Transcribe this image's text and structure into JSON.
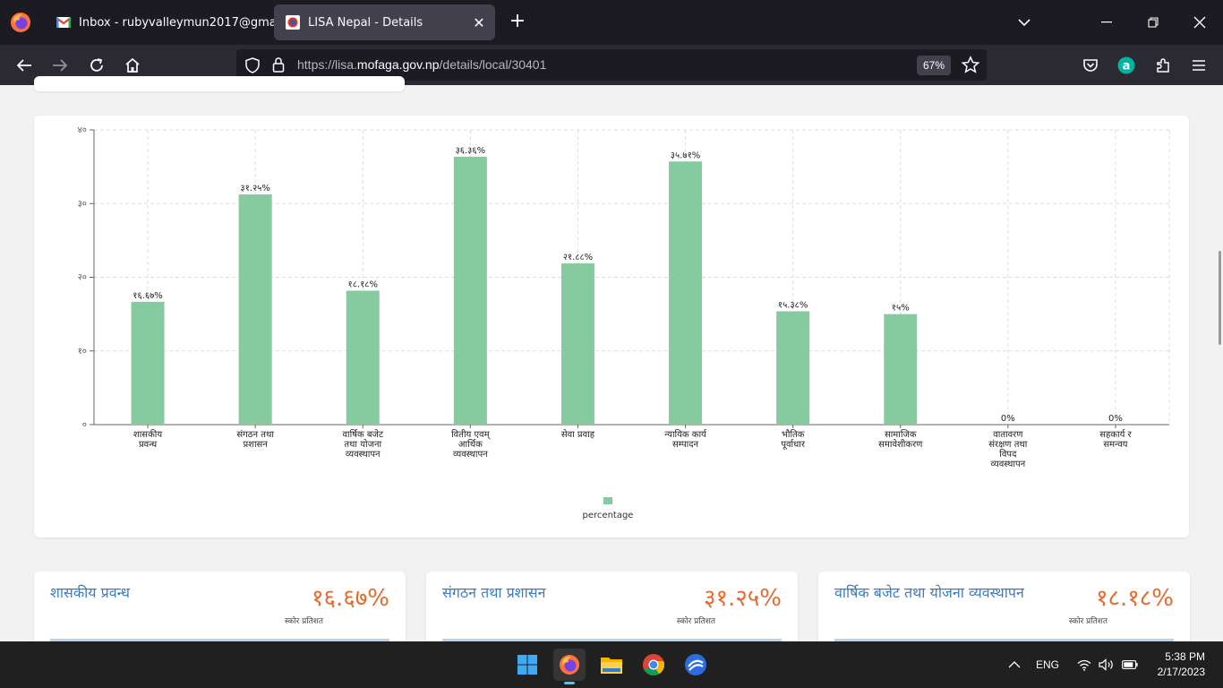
{
  "browser": {
    "tabs": [
      {
        "title": "Inbox - rubyvalleymun2017@gma",
        "favicon": "gmail-icon",
        "active": false
      },
      {
        "title": "LISA Nepal - Details",
        "favicon": "lisa-icon",
        "active": true
      }
    ],
    "url_prefix": "https://lisa.",
    "url_domain": "mofaga.gov.np",
    "url_path": "/details/local/30401",
    "zoom": "67%"
  },
  "chart_data": {
    "type": "bar",
    "categories": [
      [
        "शासकीय",
        "प्रवन्ध"
      ],
      [
        "संगठन तथा",
        "प्रशासन"
      ],
      [
        "वार्षिक बजेट",
        "तथा योजना",
        "व्यवस्थापन"
      ],
      [
        "वितीय एवम्",
        "आर्थिक",
        "व्यवस्थापन"
      ],
      [
        "सेवा प्रवाह"
      ],
      [
        "न्यायिक कार्य",
        "सम्पादन"
      ],
      [
        "भौतिक",
        "पूर्वाधार"
      ],
      [
        "सामाजिक",
        "समावेशीकरण"
      ],
      [
        "वातावरण",
        "संरक्षण तथा",
        "विपद",
        "व्यवस्थापन"
      ],
      [
        "सहकार्य र",
        "समन्वय"
      ]
    ],
    "values": [
      16.67,
      31.25,
      18.18,
      36.36,
      21.88,
      35.71,
      15.38,
      15,
      0,
      0
    ],
    "data_labels": [
      "१६.६७%",
      "३१.२५%",
      "१८.१८%",
      "३६.३६%",
      "२१.८८%",
      "३५.७१%",
      "१५.३८%",
      "१५%",
      "0%",
      "0%"
    ],
    "y_ticks": [
      "०",
      "१०",
      "२०",
      "३०",
      "४०"
    ],
    "ylim": [
      0,
      40
    ],
    "grid": true,
    "legend": {
      "label": "percentage",
      "placement": "bottom"
    },
    "color": "#86cb9f"
  },
  "score_cards": [
    {
      "title": "शासकीय प्रवन्ध",
      "score": "१६.६७%",
      "sub": "स्कोर प्रतिशत"
    },
    {
      "title": "संगठन तथा प्रशासन",
      "score": "३१.२५%",
      "sub": "स्कोर प्रतिशत"
    },
    {
      "title": "वार्षिक बजेट तथा योजना व्यवस्थापन",
      "score": "१८.१८%",
      "sub": "स्कोर प्रतिशत"
    }
  ],
  "taskbar": {
    "language": "ENG",
    "time": "5:38 PM",
    "date": "2/17/2023"
  }
}
